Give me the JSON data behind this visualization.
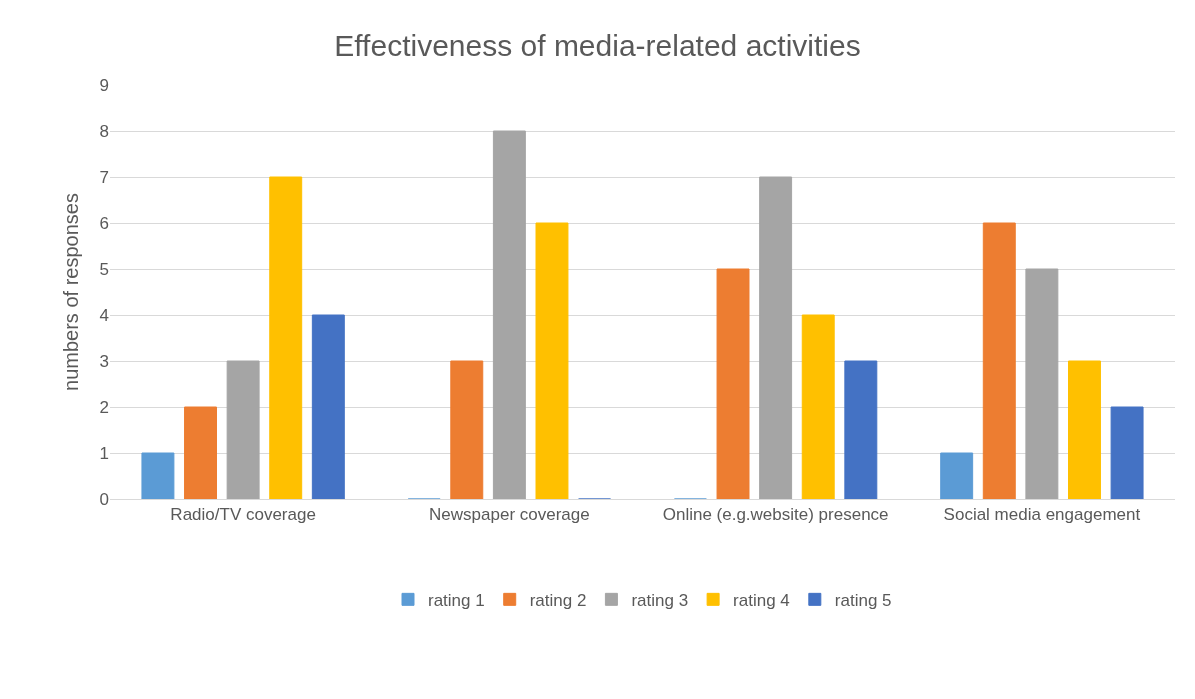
{
  "chart_data": {
    "type": "bar",
    "title": "Effectiveness of media-related activities",
    "ylabel": "numbers of responses",
    "categories": [
      "Radio/TV coverage",
      "Newspaper coverage",
      "Online (e.g.website) presence",
      "Social media engagement"
    ],
    "series": [
      {
        "name": "rating 1",
        "color": "#5b9bd5",
        "values": [
          1,
          0,
          0,
          1
        ]
      },
      {
        "name": "rating 2",
        "color": "#ed7d31",
        "values": [
          2,
          3,
          5,
          6
        ]
      },
      {
        "name": "rating 3",
        "color": "#a5a5a5",
        "values": [
          3,
          8,
          7,
          5
        ]
      },
      {
        "name": "rating 4",
        "color": "#ffc000",
        "values": [
          7,
          6,
          4,
          3
        ]
      },
      {
        "name": "rating 5",
        "color": "#4472c4",
        "values": [
          4,
          0,
          3,
          2
        ]
      }
    ],
    "ylim": [
      0,
      9
    ],
    "yticks": [
      0,
      1,
      2,
      3,
      4,
      5,
      6,
      7,
      8,
      9
    ],
    "grid": "y",
    "legend": "bottom"
  }
}
